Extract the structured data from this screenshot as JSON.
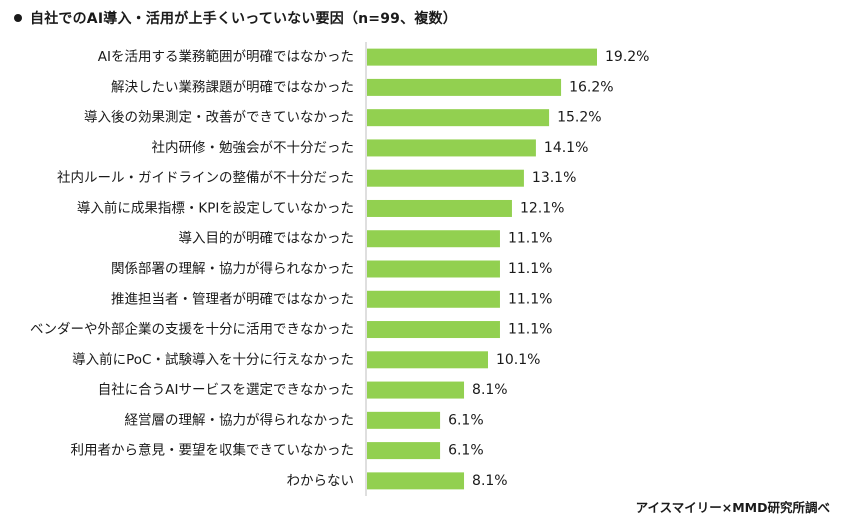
{
  "chart_data": {
    "type": "bar",
    "orientation": "horizontal",
    "title": "自社でのAI導入・活用が上手くいっていない要因（n=99、複数）",
    "categories": [
      "AIを活用する業務範囲が明確ではなかった",
      "解決したい業務課題が明確ではなかった",
      "導入後の効果測定・改善ができていなかった",
      "社内研修・勉強会が不十分だった",
      "社内ルール・ガイドラインの整備が不十分だった",
      "導入前に成果指標・KPIを設定していなかった",
      "導入目的が明確ではなかった",
      "関係部署の理解・協力が得られなかった",
      "推進担当者・管理者が明確ではなかった",
      "ベンダーや外部企業の支援を十分に活用できなかった",
      "導入前にPoC・試験導入を十分に行えなかった",
      "自社に合うAIサービスを選定できなかった",
      "経営層の理解・協力が得られなかった",
      "利用者から意見・要望を収集できていなかった",
      "わからない"
    ],
    "values": [
      19.2,
      16.2,
      15.2,
      14.1,
      13.1,
      12.1,
      11.1,
      11.1,
      11.1,
      11.1,
      10.1,
      8.1,
      6.1,
      6.1,
      8.1
    ],
    "value_labels": [
      "19.2%",
      "16.2%",
      "15.2%",
      "14.1%",
      "13.1%",
      "12.1%",
      "11.1%",
      "11.1%",
      "11.1%",
      "11.1%",
      "10.1%",
      "8.1%",
      "6.1%",
      "6.1%",
      "8.1%"
    ],
    "unit": "%",
    "bar_color": "#92d050",
    "axis_line_color": "#bfbfbf",
    "grid": false,
    "legend": "none"
  },
  "source": "アイスマイリー×MMD研究所調べ"
}
